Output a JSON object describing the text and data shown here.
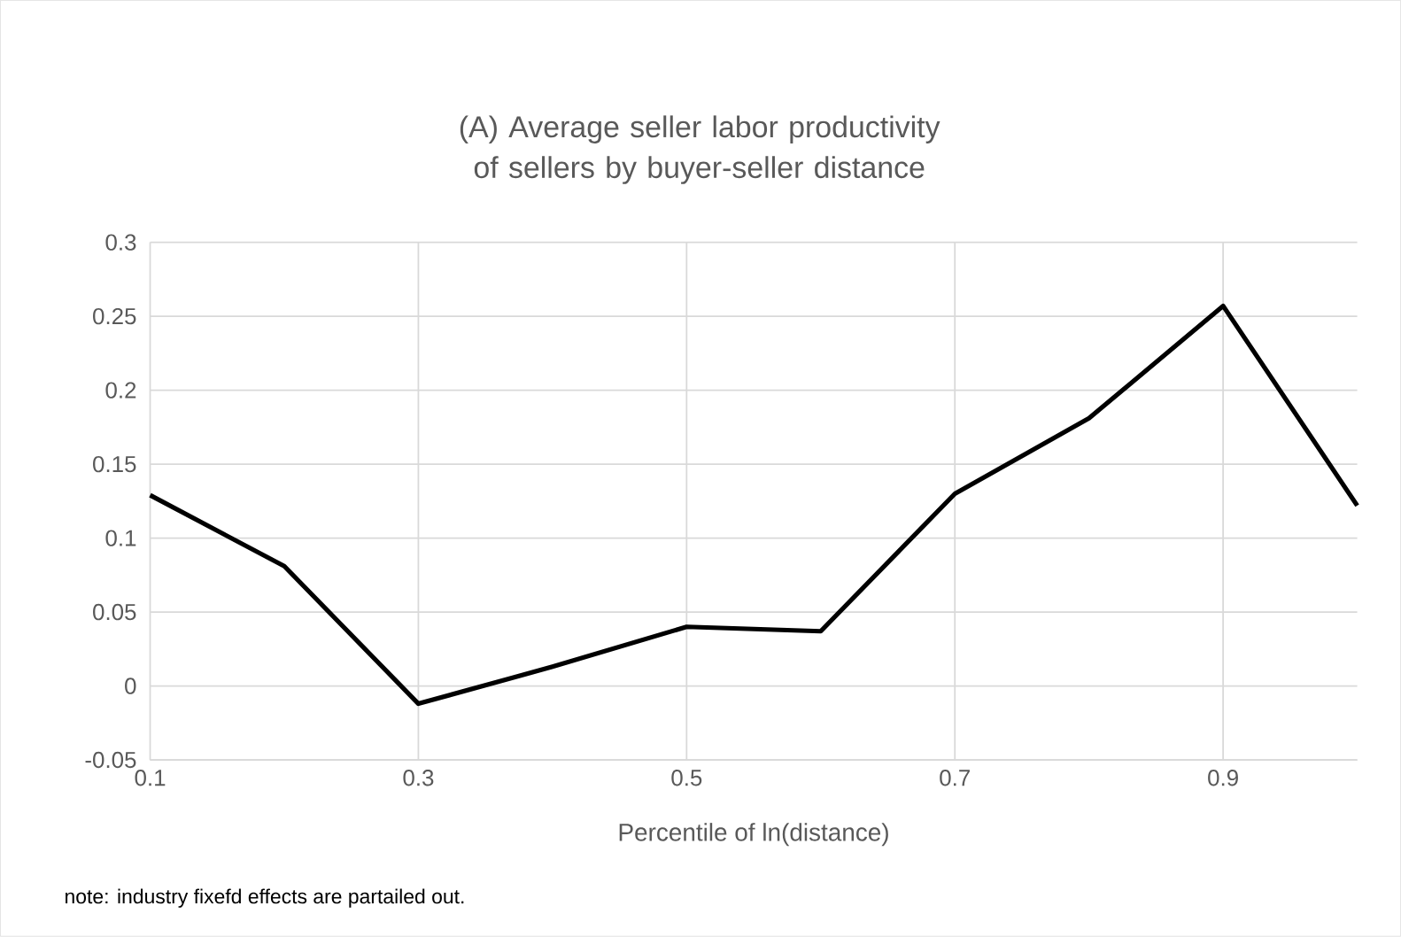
{
  "chart_data": {
    "type": "line",
    "title": "(A) Average seller labor productivity of sellers by buyer-seller distance",
    "xlabel": "Percentile of ln(distance)",
    "annotations": [
      "note: industry fixefd effects are partailed out."
    ],
    "x": [
      0.1,
      0.2,
      0.3,
      0.4,
      0.5,
      0.6,
      0.7,
      0.8,
      0.9,
      1.0
    ],
    "series": [
      {
        "color": "#000000",
        "values": [
          0.129,
          0.081,
          -0.012,
          0.013,
          0.04,
          0.037,
          0.13,
          0.181,
          0.257,
          0.122
        ]
      }
    ],
    "xlim": [
      0.1,
      1.0
    ],
    "xticks": [
      0.1,
      0.3,
      0.5,
      0.7,
      0.9
    ],
    "ylim": [
      -0.05,
      0.3
    ],
    "yticks": [
      -0.05,
      0,
      0.05,
      0.1,
      0.15,
      0.2,
      0.25,
      0.3
    ],
    "grid": true,
    "marker": "none",
    "line_style": "solid"
  }
}
